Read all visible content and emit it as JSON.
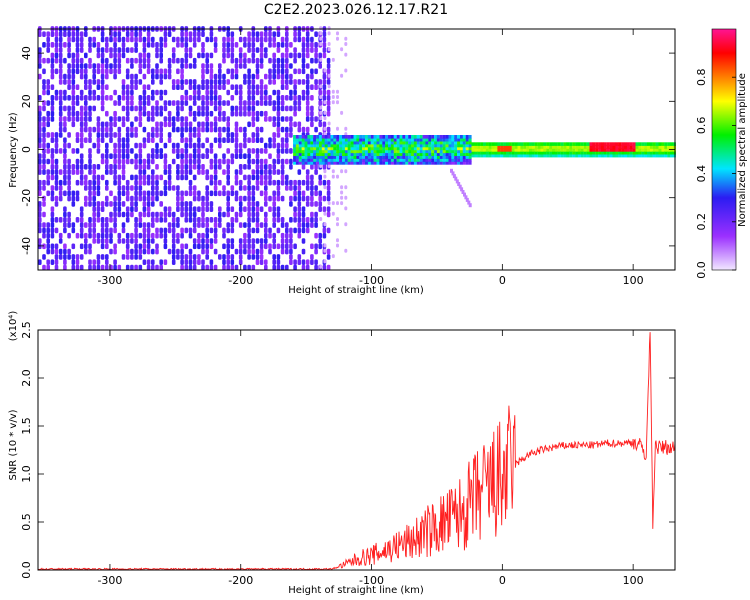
{
  "title": "C2E2.2023.026.12.17.R21",
  "chart_data": [
    {
      "type": "heatmap",
      "xlabel": "Height of straight line (km)",
      "ylabel": "Frequency (Hz)",
      "xlim": [
        -355,
        132
      ],
      "ylim": [
        -50,
        50
      ],
      "xticks": [
        -300,
        -200,
        -100,
        0,
        100
      ],
      "yticks": [
        -40,
        -20,
        0,
        20,
        40
      ],
      "colorbar": {
        "label": "Normalized spectral amplitude",
        "range": [
          0.0,
          1.0
        ],
        "ticks": [
          0.0,
          0.2,
          0.4,
          0.6,
          0.8
        ],
        "colormap": [
          "#ffffff",
          "#9b30ff",
          "#2b1cf2",
          "#00e5ff",
          "#00f000",
          "#ffff00",
          "#ff7f00",
          "#ff0000",
          "#ff1493"
        ]
      },
      "description_regions": [
        {
          "x_range": [
            -355,
            -135
          ],
          "freq_range": [
            -50,
            50
          ],
          "level": 0.15
        },
        {
          "x_range": [
            -160,
            -25
          ],
          "freq_range": [
            -6,
            6
          ],
          "level": 0.45
        },
        {
          "x_range": [
            -25,
            132
          ],
          "freq_range": [
            -3,
            3
          ],
          "level": 0.5
        },
        {
          "x_range": [
            65,
            100
          ],
          "freq_range": [
            -1,
            2
          ],
          "level": 0.95
        }
      ]
    },
    {
      "type": "line",
      "xlabel": "Height of straight line (km)",
      "ylabel": "SNR (10 * v/v)",
      "yscale_label": "(x10⁴)",
      "xlim": [
        -355,
        132
      ],
      "ylim": [
        0,
        2.5
      ],
      "xticks": [
        -300,
        -200,
        -100,
        0,
        100
      ],
      "yticks": [
        0.0,
        0.5,
        1.0,
        1.5,
        2.0,
        2.5
      ],
      "color": "#ff2020",
      "series": [
        {
          "x": [
            -355,
            -300,
            -200,
            -130,
            -120,
            -110,
            -100,
            -90,
            -80,
            -70,
            -60,
            -50,
            -40,
            -30,
            -20,
            -10,
            0,
            10,
            20,
            30,
            40,
            50,
            60,
            70,
            80,
            90,
            100,
            105,
            110,
            113,
            115,
            117,
            120,
            125,
            132
          ],
          "y": [
            0.01,
            0.01,
            0.01,
            0.01,
            0.06,
            0.12,
            0.15,
            0.2,
            0.25,
            0.3,
            0.38,
            0.45,
            0.52,
            0.6,
            0.75,
            0.85,
            0.95,
            1.1,
            1.2,
            1.25,
            1.28,
            1.3,
            1.3,
            1.3,
            1.32,
            1.32,
            1.33,
            1.3,
            1.2,
            2.5,
            0.5,
            1.3,
            1.27,
            1.28,
            1.27
          ]
        }
      ]
    }
  ]
}
